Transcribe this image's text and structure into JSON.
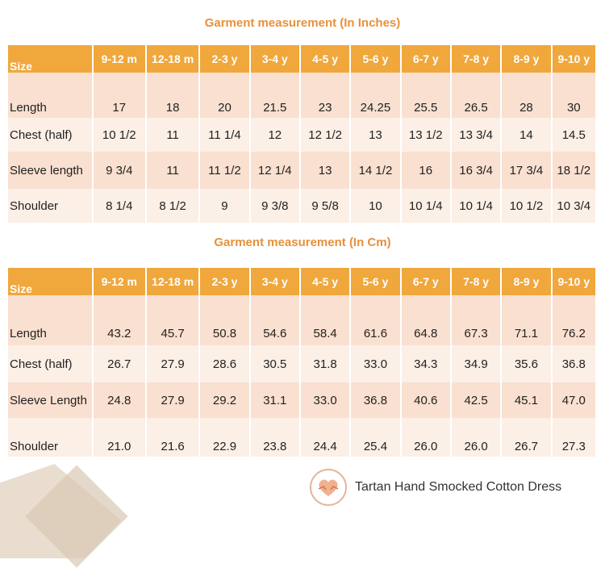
{
  "inch_table": {
    "title": "Garment measurement (In Inches)",
    "header": [
      "Size",
      "9-12 m",
      "12-18 m",
      "2-3 y",
      "3-4 y",
      "4-5 y",
      "5-6 y",
      "6-7 y",
      "7-8 y",
      "8-9 y",
      "9-10 y"
    ],
    "rows": [
      {
        "label": "Length",
        "values": [
          "17",
          "18",
          "20",
          "21.5",
          "23",
          "24.25",
          "25.5",
          "26.5",
          "28",
          "30"
        ]
      },
      {
        "label": "Chest (half)",
        "values": [
          "10 1/2",
          "11",
          "11 1/4",
          "12",
          "12 1/2",
          "13",
          "13 1/2",
          "13 3/4",
          "14",
          "14.5"
        ]
      },
      {
        "label": "Sleeve length",
        "values": [
          "9 3/4",
          "11",
          "11 1/2",
          "12 1/4",
          "13",
          "14 1/2",
          "16",
          "16 3/4",
          "17 3/4",
          "18 1/2"
        ]
      },
      {
        "label": "Shoulder",
        "values": [
          "8 1/4",
          "8 1/2",
          "9",
          "9 3/8",
          "9 5/8",
          "10",
          "10 1/4",
          "10 1/4",
          "10 1/2",
          "10 3/4"
        ]
      }
    ]
  },
  "cm_table": {
    "title": "Garment measurement (In Cm)",
    "header": [
      "Size",
      "9-12 m",
      "12-18 m",
      "2-3 y",
      "3-4 y",
      "4-5 y",
      "5-6 y",
      "6-7 y",
      "7-8 y",
      "8-9 y",
      "9-10 y"
    ],
    "rows": [
      {
        "label": "Length",
        "values": [
          "43.2",
          "45.7",
          "50.8",
          "54.6",
          "58.4",
          "61.6",
          "64.8",
          "67.3",
          "71.1",
          "76.2"
        ]
      },
      {
        "label": "Chest (half)",
        "values": [
          "26.7",
          "27.9",
          "28.6",
          "30.5",
          "31.8",
          "33.0",
          "34.3",
          "34.9",
          "35.6",
          "36.8"
        ]
      },
      {
        "label": "Sleeve Length",
        "values": [
          "24.8",
          "27.9",
          "29.2",
          "31.1",
          "33.0",
          "36.8",
          "40.6",
          "42.5",
          "45.1",
          "47.0"
        ]
      },
      {
        "label": "Shoulder",
        "values": [
          "21.0",
          "21.6",
          "22.9",
          "23.8",
          "24.4",
          "25.4",
          "26.0",
          "26.0",
          "26.7",
          "27.3"
        ]
      }
    ]
  },
  "brand": {
    "text": "Tartan Hand Smocked Cotton Dress",
    "logo_icon": "heart-hands-icon",
    "colors": {
      "accent": "#f0a73c",
      "title": "#e6913c",
      "row_dark": "#f9e0d0",
      "row_light": "#fcefe6"
    }
  }
}
